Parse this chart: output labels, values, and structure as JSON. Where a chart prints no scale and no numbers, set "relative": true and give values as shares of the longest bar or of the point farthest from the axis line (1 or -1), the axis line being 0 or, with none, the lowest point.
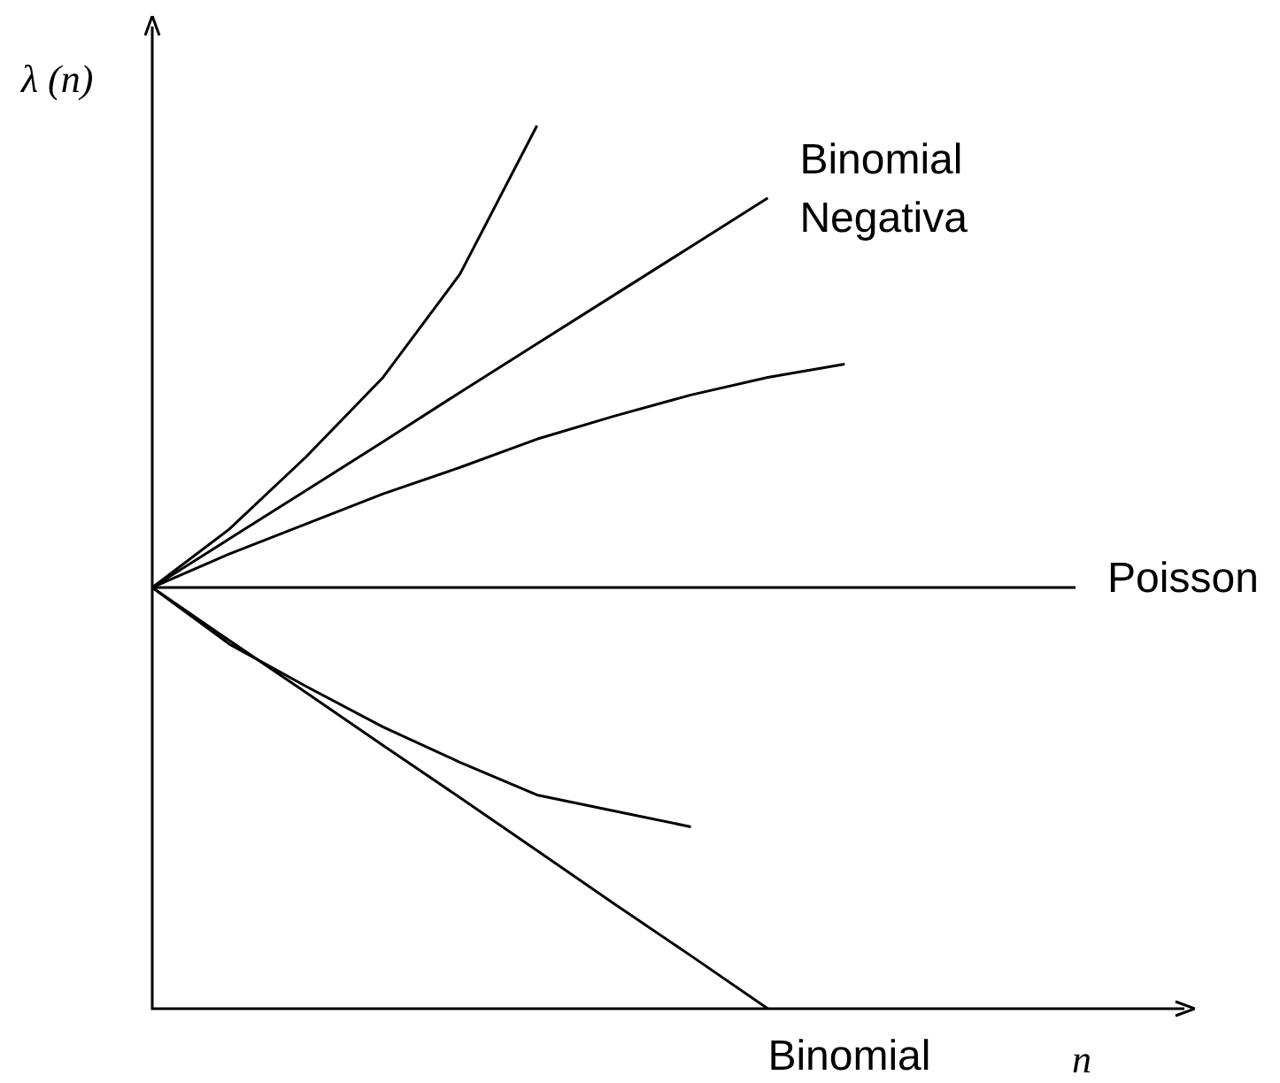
{
  "chart_data": {
    "type": "line",
    "relative": true,
    "ylabel": "λ (n)",
    "xlabel": "n",
    "legend": false,
    "tick_labels": false,
    "marker": "none",
    "line_style": "solid",
    "categories": [
      null,
      null,
      null,
      null,
      null,
      null,
      null,
      null,
      null,
      null,
      null,
      null,
      null,
      null
    ],
    "series": [
      {
        "color": "#000000",
        "values": [
          0.477,
          0.543,
          0.625,
          0.715,
          0.832,
          1,
          null,
          null,
          null,
          null,
          null,
          null,
          null,
          null
        ]
      },
      {
        "name": "Binomial Negativa",
        "color": "#000000",
        "values": [
          0.477,
          0.532,
          0.587,
          0.642,
          0.698,
          0.753,
          0.808,
          0.863,
          0.918,
          null,
          null,
          null,
          null,
          null
        ]
      },
      {
        "color": "#000000",
        "values": [
          0.477,
          0.515,
          0.549,
          0.583,
          0.613,
          0.645,
          0.671,
          0.695,
          0.715,
          0.73,
          null,
          null,
          null,
          null
        ]
      },
      {
        "name": "Poisson",
        "color": "#000000",
        "values": [
          0.477,
          0.477,
          0.477,
          0.477,
          0.477,
          0.477,
          0.477,
          0.477,
          0.477,
          0.477,
          0.477,
          0.477,
          0.477,
          null
        ]
      },
      {
        "color": "#000000",
        "values": [
          0.477,
          0.413,
          0.365,
          0.319,
          0.279,
          0.242,
          0.224,
          0.206,
          null,
          null,
          null,
          null,
          null,
          null
        ]
      },
      {
        "name": "Binomial",
        "color": "#000000",
        "values": [
          0.477,
          0.417,
          0.358,
          0.298,
          0.239,
          0.179,
          0.119,
          0.06,
          0,
          null,
          null,
          null,
          null,
          null
        ]
      }
    ]
  }
}
